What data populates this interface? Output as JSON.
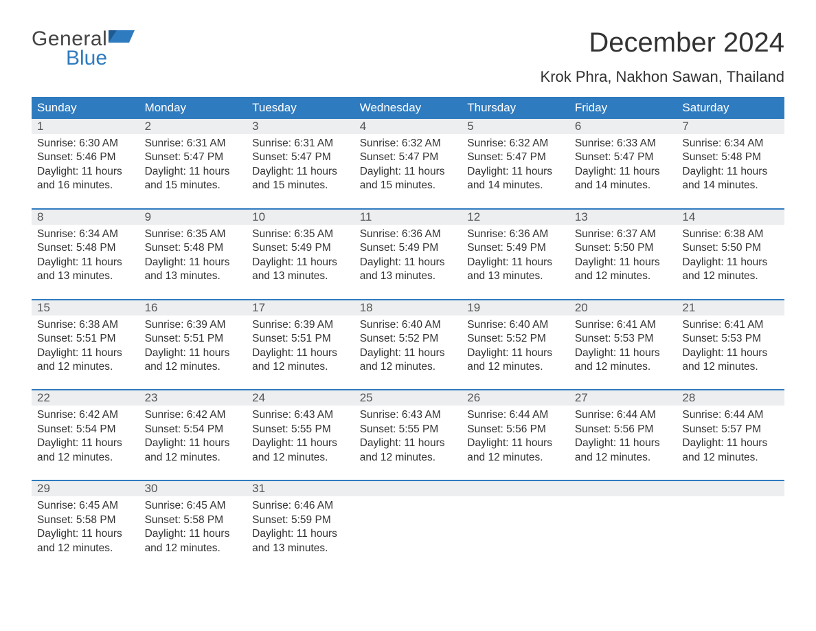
{
  "logo": {
    "text1": "General",
    "text2": "Blue"
  },
  "title": "December 2024",
  "location": "Krok Phra, Nakhon Sawan, Thailand",
  "colors": {
    "header_bg": "#2f7bbf",
    "header_text": "#ffffff",
    "daynum_bg": "#eceeef",
    "week_divider": "#2f7bbf",
    "body_text": "#333333",
    "logo_general": "#444444",
    "logo_blue": "#2f7bbf",
    "background": "#ffffff"
  },
  "typography": {
    "title_fontsize": 40,
    "location_fontsize": 22,
    "header_fontsize": 17,
    "daynum_fontsize": 17,
    "cell_fontsize": 15.5,
    "logo_fontsize": 30
  },
  "dayHeaders": [
    "Sunday",
    "Monday",
    "Tuesday",
    "Wednesday",
    "Thursday",
    "Friday",
    "Saturday"
  ],
  "weeks": [
    {
      "nums": [
        "1",
        "2",
        "3",
        "4",
        "5",
        "6",
        "7"
      ],
      "cells": [
        "Sunrise: 6:30 AM\nSunset: 5:46 PM\nDaylight: 11 hours\nand 16 minutes.",
        "Sunrise: 6:31 AM\nSunset: 5:47 PM\nDaylight: 11 hours\nand 15 minutes.",
        "Sunrise: 6:31 AM\nSunset: 5:47 PM\nDaylight: 11 hours\nand 15 minutes.",
        "Sunrise: 6:32 AM\nSunset: 5:47 PM\nDaylight: 11 hours\nand 15 minutes.",
        "Sunrise: 6:32 AM\nSunset: 5:47 PM\nDaylight: 11 hours\nand 14 minutes.",
        "Sunrise: 6:33 AM\nSunset: 5:47 PM\nDaylight: 11 hours\nand 14 minutes.",
        "Sunrise: 6:34 AM\nSunset: 5:48 PM\nDaylight: 11 hours\nand 14 minutes."
      ]
    },
    {
      "nums": [
        "8",
        "9",
        "10",
        "11",
        "12",
        "13",
        "14"
      ],
      "cells": [
        "Sunrise: 6:34 AM\nSunset: 5:48 PM\nDaylight: 11 hours\nand 13 minutes.",
        "Sunrise: 6:35 AM\nSunset: 5:48 PM\nDaylight: 11 hours\nand 13 minutes.",
        "Sunrise: 6:35 AM\nSunset: 5:49 PM\nDaylight: 11 hours\nand 13 minutes.",
        "Sunrise: 6:36 AM\nSunset: 5:49 PM\nDaylight: 11 hours\nand 13 minutes.",
        "Sunrise: 6:36 AM\nSunset: 5:49 PM\nDaylight: 11 hours\nand 13 minutes.",
        "Sunrise: 6:37 AM\nSunset: 5:50 PM\nDaylight: 11 hours\nand 12 minutes.",
        "Sunrise: 6:38 AM\nSunset: 5:50 PM\nDaylight: 11 hours\nand 12 minutes."
      ]
    },
    {
      "nums": [
        "15",
        "16",
        "17",
        "18",
        "19",
        "20",
        "21"
      ],
      "cells": [
        "Sunrise: 6:38 AM\nSunset: 5:51 PM\nDaylight: 11 hours\nand 12 minutes.",
        "Sunrise: 6:39 AM\nSunset: 5:51 PM\nDaylight: 11 hours\nand 12 minutes.",
        "Sunrise: 6:39 AM\nSunset: 5:51 PM\nDaylight: 11 hours\nand 12 minutes.",
        "Sunrise: 6:40 AM\nSunset: 5:52 PM\nDaylight: 11 hours\nand 12 minutes.",
        "Sunrise: 6:40 AM\nSunset: 5:52 PM\nDaylight: 11 hours\nand 12 minutes.",
        "Sunrise: 6:41 AM\nSunset: 5:53 PM\nDaylight: 11 hours\nand 12 minutes.",
        "Sunrise: 6:41 AM\nSunset: 5:53 PM\nDaylight: 11 hours\nand 12 minutes."
      ]
    },
    {
      "nums": [
        "22",
        "23",
        "24",
        "25",
        "26",
        "27",
        "28"
      ],
      "cells": [
        "Sunrise: 6:42 AM\nSunset: 5:54 PM\nDaylight: 11 hours\nand 12 minutes.",
        "Sunrise: 6:42 AM\nSunset: 5:54 PM\nDaylight: 11 hours\nand 12 minutes.",
        "Sunrise: 6:43 AM\nSunset: 5:55 PM\nDaylight: 11 hours\nand 12 minutes.",
        "Sunrise: 6:43 AM\nSunset: 5:55 PM\nDaylight: 11 hours\nand 12 minutes.",
        "Sunrise: 6:44 AM\nSunset: 5:56 PM\nDaylight: 11 hours\nand 12 minutes.",
        "Sunrise: 6:44 AM\nSunset: 5:56 PM\nDaylight: 11 hours\nand 12 minutes.",
        "Sunrise: 6:44 AM\nSunset: 5:57 PM\nDaylight: 11 hours\nand 12 minutes."
      ]
    },
    {
      "nums": [
        "29",
        "30",
        "31",
        "",
        "",
        "",
        ""
      ],
      "cells": [
        "Sunrise: 6:45 AM\nSunset: 5:58 PM\nDaylight: 11 hours\nand 12 minutes.",
        "Sunrise: 6:45 AM\nSunset: 5:58 PM\nDaylight: 11 hours\nand 12 minutes.",
        "Sunrise: 6:46 AM\nSunset: 5:59 PM\nDaylight: 11 hours\nand 13 minutes.",
        "",
        "",
        "",
        ""
      ]
    }
  ]
}
